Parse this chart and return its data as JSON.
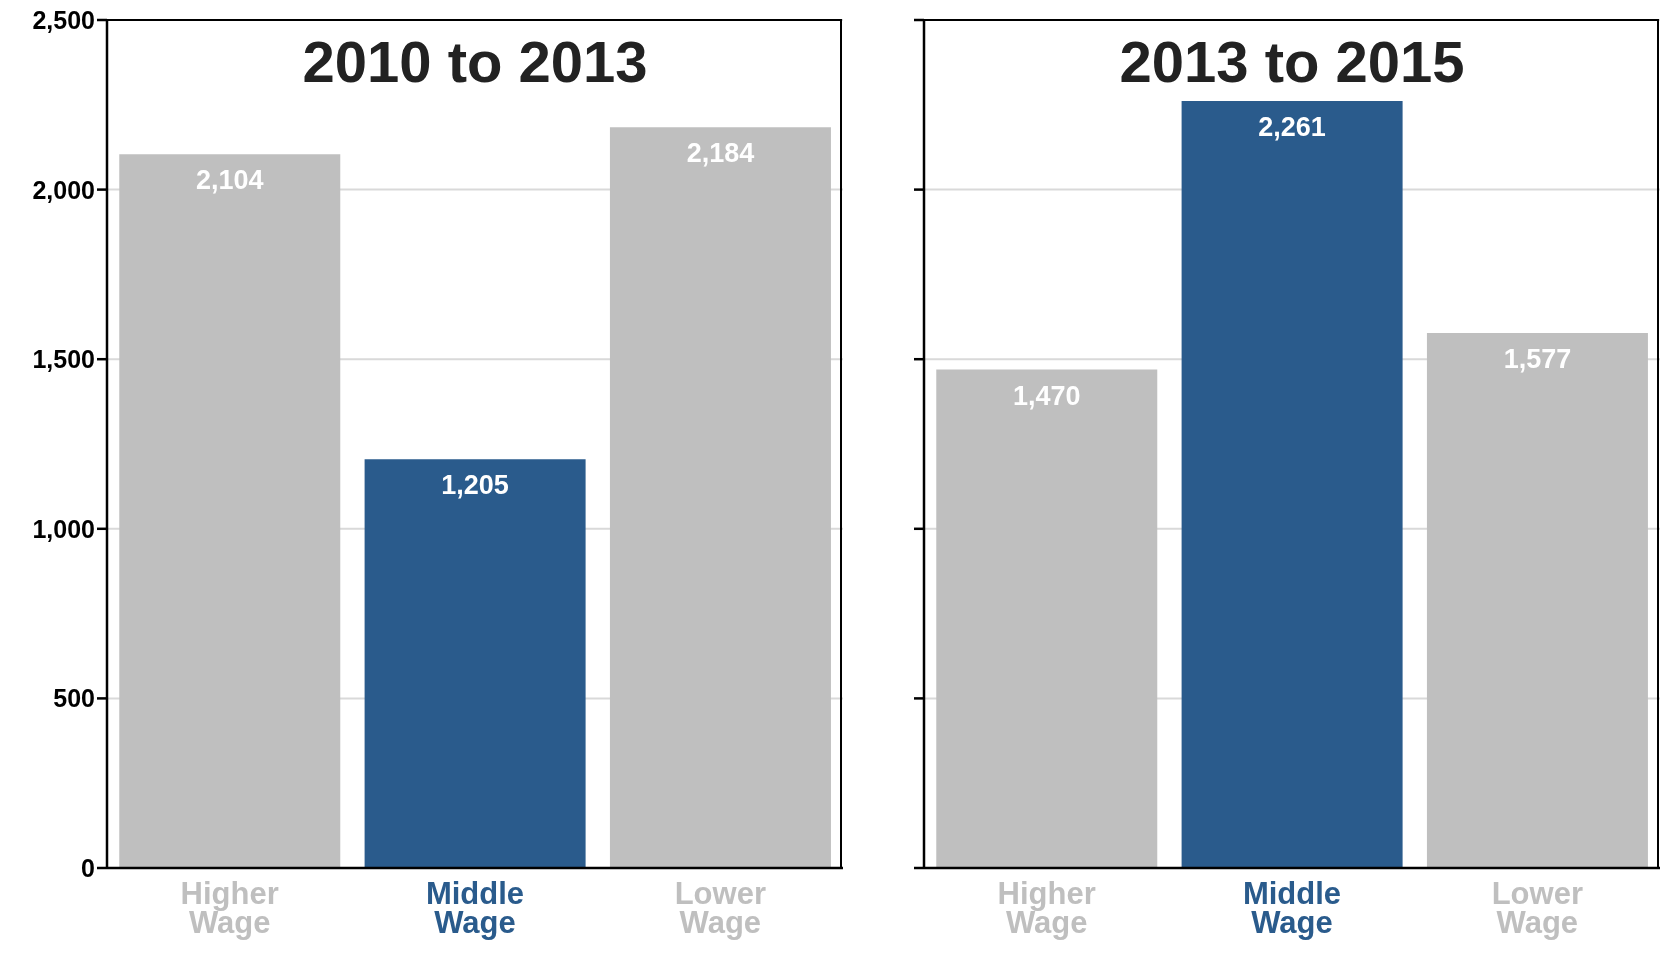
{
  "chart_data": [
    {
      "type": "bar",
      "title": "2010 to 2013",
      "categories": [
        "Higher Wage",
        "Middle Wage",
        "Lower Wage"
      ],
      "values": [
        2104,
        1205,
        2184
      ],
      "colors": [
        "#bfbfbf",
        "#2a5b8c",
        "#bfbfbf"
      ],
      "value_labels": [
        "2,104",
        "1,205",
        "2,184"
      ],
      "ylim": [
        0,
        2500
      ],
      "yticks": [
        {
          "value": 0,
          "label": "0"
        },
        {
          "value": 500,
          "label": "500"
        },
        {
          "value": 1000,
          "label": "1,000"
        },
        {
          "value": 1500,
          "label": "1,500"
        },
        {
          "value": 2000,
          "label": "2,000"
        },
        {
          "value": 2500,
          "label": "2,500"
        }
      ],
      "grid": "y"
    },
    {
      "type": "bar",
      "title": "2013 to 2015",
      "categories": [
        "Higher Wage",
        "Middle Wage",
        "Lower Wage"
      ],
      "values": [
        1470,
        2261,
        1577
      ],
      "colors": [
        "#bfbfbf",
        "#2a5b8c",
        "#bfbfbf"
      ],
      "value_labels": [
        "1,470",
        "2,261",
        "1,577"
      ],
      "ylim": [
        0,
        2500
      ],
      "yticks": [
        {
          "value": 0,
          "label": null
        },
        {
          "value": 500,
          "label": null
        },
        {
          "value": 1000,
          "label": null
        },
        {
          "value": 1500,
          "label": null
        },
        {
          "value": 2000,
          "label": null
        },
        {
          "value": 2500,
          "label": null
        }
      ],
      "grid": "y",
      "tick_labels": "x"
    }
  ]
}
